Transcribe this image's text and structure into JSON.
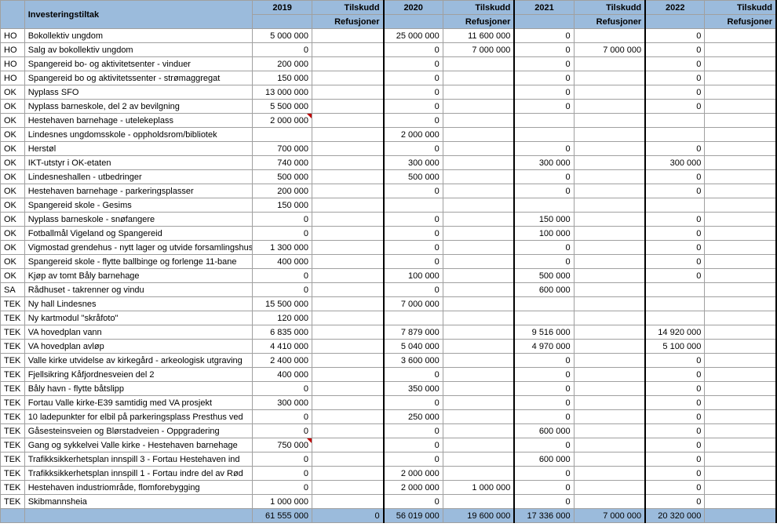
{
  "headers": {
    "col1": "",
    "col2": "Investeringstiltak",
    "years": [
      "2019",
      "2020",
      "2021",
      "2022"
    ],
    "sub1": "Tilskudd",
    "sub2": "Refusjoner"
  },
  "rows": [
    {
      "dept": "HO",
      "name": "Bokollektiv ungdom",
      "v2019": "5 000 000",
      "r2019": "",
      "v2020": "25 000 000",
      "r2020": "11 600 000",
      "v2021": "0",
      "r2021": "",
      "v2022": "0",
      "r2022": ""
    },
    {
      "dept": "HO",
      "name": "Salg av bokollektiv ungdom",
      "v2019": "0",
      "r2019": "",
      "v2020": "0",
      "r2020": "7 000 000",
      "v2021": "0",
      "r2021": "7 000 000",
      "v2022": "0",
      "r2022": ""
    },
    {
      "dept": "HO",
      "name": "Spangereid bo- og aktivitetsenter - vinduer",
      "v2019": "200 000",
      "r2019": "",
      "v2020": "0",
      "r2020": "",
      "v2021": "0",
      "r2021": "",
      "v2022": "0",
      "r2022": ""
    },
    {
      "dept": "HO",
      "name": "Spangereid bo og aktivitetssenter -  strømaggregat",
      "v2019": "150 000",
      "r2019": "",
      "v2020": "0",
      "r2020": "",
      "v2021": "0",
      "r2021": "",
      "v2022": "0",
      "r2022": ""
    },
    {
      "dept": "OK",
      "name": "Nyplass SFO",
      "v2019": "13 000 000",
      "r2019": "",
      "v2020": "0",
      "r2020": "",
      "v2021": "0",
      "r2021": "",
      "v2022": "0",
      "r2022": ""
    },
    {
      "dept": "OK",
      "name": "Nyplass barneskole, del 2 av bevilgning",
      "v2019": "5 500 000",
      "r2019": "",
      "v2020": "0",
      "r2020": "",
      "v2021": "0",
      "r2021": "",
      "v2022": "0",
      "r2022": ""
    },
    {
      "dept": "OK",
      "name": "Hestehaven barnehage -  utelekeplass",
      "v2019": "2 000 000",
      "r2019": "",
      "v2020": "0",
      "r2020": "",
      "v2021": "",
      "r2021": "",
      "v2022": "",
      "r2022": "",
      "flag": true
    },
    {
      "dept": "OK",
      "name": "Lindesnes ungdomsskole - oppholdsrom/bibliotek",
      "v2019": "",
      "r2019": "",
      "v2020": "2 000 000",
      "r2020": "",
      "v2021": "",
      "r2021": "",
      "v2022": "",
      "r2022": ""
    },
    {
      "dept": "OK",
      "name": "Herstøl",
      "v2019": "700 000",
      "r2019": "",
      "v2020": "0",
      "r2020": "",
      "v2021": "0",
      "r2021": "",
      "v2022": "0",
      "r2022": ""
    },
    {
      "dept": "OK",
      "name": "IKT-utstyr i OK-etaten",
      "v2019": "740 000",
      "r2019": "",
      "v2020": "300 000",
      "r2020": "",
      "v2021": "300 000",
      "r2021": "",
      "v2022": "300 000",
      "r2022": ""
    },
    {
      "dept": "OK",
      "name": "Lindesneshallen - utbedringer",
      "v2019": "500 000",
      "r2019": "",
      "v2020": "500 000",
      "r2020": "",
      "v2021": "0",
      "r2021": "",
      "v2022": "0",
      "r2022": ""
    },
    {
      "dept": "OK",
      "name": "Hestehaven barnehage - parkeringsplasser",
      "v2019": "200 000",
      "r2019": "",
      "v2020": "0",
      "r2020": "",
      "v2021": "0",
      "r2021": "",
      "v2022": "0",
      "r2022": ""
    },
    {
      "dept": "OK",
      "name": "Spangereid skole -  Gesims",
      "v2019": "150 000",
      "r2019": "",
      "v2020": "",
      "r2020": "",
      "v2021": "",
      "r2021": "",
      "v2022": "",
      "r2022": ""
    },
    {
      "dept": "OK",
      "name": "Nyplass barneskole - snøfangere",
      "v2019": "0",
      "r2019": "",
      "v2020": "0",
      "r2020": "",
      "v2021": "150 000",
      "r2021": "",
      "v2022": "0",
      "r2022": ""
    },
    {
      "dept": "OK",
      "name": "Fotballmål Vigeland og Spangereid",
      "v2019": "0",
      "r2019": "",
      "v2020": "0",
      "r2020": "",
      "v2021": "100 000",
      "r2021": "",
      "v2022": "0",
      "r2022": ""
    },
    {
      "dept": "OK",
      "name": "Vigmostad grendehus - nytt lager og utvide forsamlingshus",
      "v2019": "1 300 000",
      "r2019": "",
      "v2020": "0",
      "r2020": "",
      "v2021": "0",
      "r2021": "",
      "v2022": "0",
      "r2022": ""
    },
    {
      "dept": "OK",
      "name": "Spangereid skole - flytte ballbinge og forlenge 11-bane",
      "v2019": "400 000",
      "r2019": "",
      "v2020": "0",
      "r2020": "",
      "v2021": "0",
      "r2021": "",
      "v2022": "0",
      "r2022": ""
    },
    {
      "dept": "OK",
      "name": "Kjøp av tomt Båly barnehage",
      "v2019": "0",
      "r2019": "",
      "v2020": "100 000",
      "r2020": "",
      "v2021": "500 000",
      "r2021": "",
      "v2022": "0",
      "r2022": ""
    },
    {
      "dept": "SA",
      "name": "Rådhuset - takrenner og vindu",
      "v2019": "0",
      "r2019": "",
      "v2020": "0",
      "r2020": "",
      "v2021": "600 000",
      "r2021": "",
      "v2022": "",
      "r2022": ""
    },
    {
      "dept": "TEK",
      "name": "Ny hall Lindesnes",
      "v2019": "15 500 000",
      "r2019": "",
      "v2020": "7 000 000",
      "r2020": "",
      "v2021": "",
      "r2021": "",
      "v2022": "",
      "r2022": ""
    },
    {
      "dept": "TEK",
      "name": "Ny kartmodul \"skråfoto\"",
      "v2019": "120 000",
      "r2019": "",
      "v2020": "",
      "r2020": "",
      "v2021": "",
      "r2021": "",
      "v2022": "",
      "r2022": ""
    },
    {
      "dept": "TEK",
      "name": "VA hovedplan vann",
      "v2019": "6 835 000",
      "r2019": "",
      "v2020": "7 879 000",
      "r2020": "",
      "v2021": "9 516 000",
      "r2021": "",
      "v2022": "14 920 000",
      "r2022": ""
    },
    {
      "dept": "TEK",
      "name": "VA hovedplan avløp",
      "v2019": "4 410 000",
      "r2019": "",
      "v2020": "5 040 000",
      "r2020": "",
      "v2021": "4 970 000",
      "r2021": "",
      "v2022": "5 100 000",
      "r2022": ""
    },
    {
      "dept": "TEK",
      "name": "Valle kirke utvidelse av kirkegård - arkeologisk utgraving",
      "v2019": "2 400 000",
      "r2019": "",
      "v2020": "3 600 000",
      "r2020": "",
      "v2021": "0",
      "r2021": "",
      "v2022": "0",
      "r2022": ""
    },
    {
      "dept": "TEK",
      "name": "Fjellsikring Kåfjordnesveien del 2",
      "v2019": "400 000",
      "r2019": "",
      "v2020": "0",
      "r2020": "",
      "v2021": "0",
      "r2021": "",
      "v2022": "0",
      "r2022": ""
    },
    {
      "dept": "TEK",
      "name": "Båly havn -  flytte båtslipp",
      "v2019": "0",
      "r2019": "",
      "v2020": "350 000",
      "r2020": "",
      "v2021": "0",
      "r2021": "",
      "v2022": "0",
      "r2022": ""
    },
    {
      "dept": "TEK",
      "name": "Fortau Valle kirke-E39 samtidig med VA prosjekt",
      "v2019": "300 000",
      "r2019": "",
      "v2020": "0",
      "r2020": "",
      "v2021": "0",
      "r2021": "",
      "v2022": "0",
      "r2022": ""
    },
    {
      "dept": "TEK",
      "name": "10 ladepunkter for elbil på parkeringsplass Presthus ved",
      "v2019": "0",
      "r2019": "",
      "v2020": "250 000",
      "r2020": "",
      "v2021": "0",
      "r2021": "",
      "v2022": "0",
      "r2022": ""
    },
    {
      "dept": "TEK",
      "name": "Gåsesteinsveien og Blørstadveien - Oppgradering",
      "v2019": "0",
      "r2019": "",
      "v2020": "0",
      "r2020": "",
      "v2021": "600 000",
      "r2021": "",
      "v2022": "0",
      "r2022": ""
    },
    {
      "dept": "TEK",
      "name": "Gang og sykkelvei Valle kirke - Hestehaven barnehage",
      "v2019": "750 000",
      "r2019": "",
      "v2020": "0",
      "r2020": "",
      "v2021": "0",
      "r2021": "",
      "v2022": "0",
      "r2022": "",
      "flag": true
    },
    {
      "dept": "TEK",
      "name": "Trafikksikkerhetsplan innspill 3  - Fortau Hestehaven ind",
      "v2019": "0",
      "r2019": "",
      "v2020": "0",
      "r2020": "",
      "v2021": "600 000",
      "r2021": "",
      "v2022": "0",
      "r2022": ""
    },
    {
      "dept": "TEK",
      "name": "Trafikksikkerhetsplan innspill 1 -  Fortau indre del av Rød",
      "v2019": "0",
      "r2019": "",
      "v2020": "2 000 000",
      "r2020": "",
      "v2021": "0",
      "r2021": "",
      "v2022": "0",
      "r2022": ""
    },
    {
      "dept": "TEK",
      "name": "Hestehaven industriområde, flomforebygging",
      "v2019": "0",
      "r2019": "",
      "v2020": "2 000 000",
      "r2020": "1 000 000",
      "v2021": "0",
      "r2021": "",
      "v2022": "0",
      "r2022": ""
    },
    {
      "dept": "TEK",
      "name": "Skibmannsheia",
      "v2019": "1 000 000",
      "r2019": "",
      "v2020": "0",
      "r2020": "",
      "v2021": "0",
      "r2021": "",
      "v2022": "0",
      "r2022": ""
    }
  ],
  "totals": {
    "v2019": "61 555 000",
    "r2019": "0",
    "v2020": "56 019 000",
    "r2020": "19 600 000",
    "v2021": "17 336 000",
    "r2021": "7 000 000",
    "v2022": "20 320 000",
    "r2022": ""
  }
}
